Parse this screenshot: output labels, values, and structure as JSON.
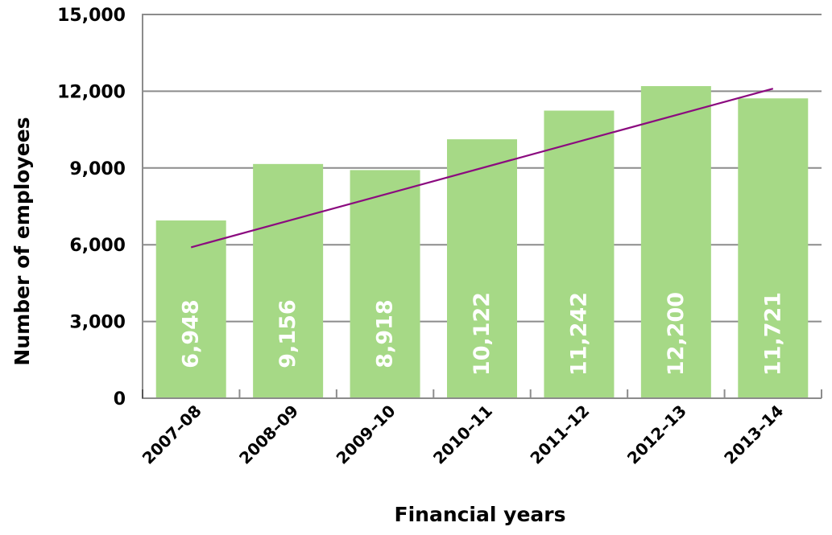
{
  "chart_data": {
    "type": "bar",
    "title": "",
    "xlabel": "Financial years",
    "ylabel": "Number of employees",
    "categories": [
      "2007–08",
      "2008–09",
      "2009–10",
      "2010–11",
      "2011–12",
      "2012–13",
      "2013–14"
    ],
    "values": [
      6948,
      9156,
      8918,
      10122,
      11242,
      12200,
      11721
    ],
    "value_labels": [
      "6,948",
      "9,156",
      "8,918",
      "10,122",
      "11,242",
      "12,200",
      "11,721"
    ],
    "ylim": [
      0,
      15000
    ],
    "yticks": [
      0,
      3000,
      6000,
      9000,
      12000,
      15000
    ],
    "ytick_labels": [
      "0",
      "3,000",
      "6,000",
      "9,000",
      "12,000",
      "15,000"
    ],
    "grid": true,
    "legend": null,
    "trendline": {
      "type": "linear",
      "start_value": 5900,
      "end_value": 12100,
      "color": "#8B0A7F"
    },
    "colors": {
      "bar": "#A6D986",
      "trendline": "#8B0A7F",
      "grid": "#8C8C8C",
      "bar_label": "#FFFFFF"
    }
  }
}
